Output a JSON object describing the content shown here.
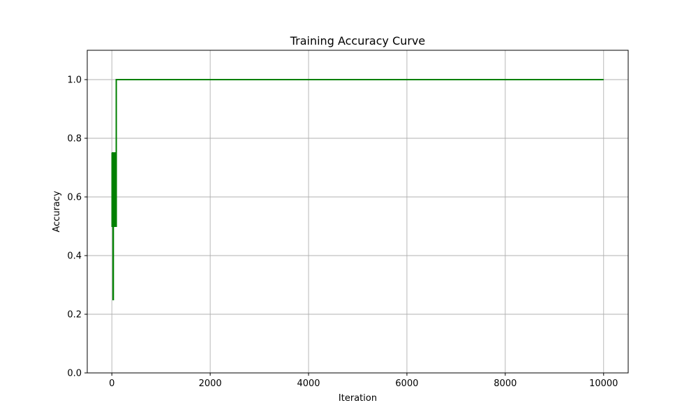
{
  "chart_data": {
    "type": "line",
    "title": "Training Accuracy Curve",
    "xlabel": "Iteration",
    "ylabel": "Accuracy",
    "xlim": [
      -500,
      10500
    ],
    "ylim": [
      0,
      1.1
    ],
    "xticks": [
      0,
      2000,
      4000,
      6000,
      8000,
      10000
    ],
    "yticks": [
      0.0,
      0.2,
      0.4,
      0.6,
      0.8,
      1.0
    ],
    "xtick_labels": [
      "0",
      "2000",
      "4000",
      "6000",
      "8000",
      "10000"
    ],
    "ytick_labels": [
      "0.0",
      "0.2",
      "0.4",
      "0.6",
      "0.8",
      "1.0"
    ],
    "grid": true,
    "series": [
      {
        "color": "#008000",
        "step": true,
        "x": [
          0,
          5,
          10,
          15,
          20,
          25,
          30,
          35,
          40,
          45,
          50,
          55,
          60,
          65,
          70,
          75,
          80,
          85,
          90,
          95,
          100,
          10000
        ],
        "values": [
          0.75,
          0.5,
          0.75,
          0.5,
          0.75,
          0.25,
          0.75,
          0.5,
          0.75,
          0.5,
          0.75,
          0.5,
          0.75,
          0.5,
          0.75,
          0.5,
          0.75,
          0.5,
          1.0,
          1.0,
          1.0,
          1.0
        ]
      }
    ]
  }
}
